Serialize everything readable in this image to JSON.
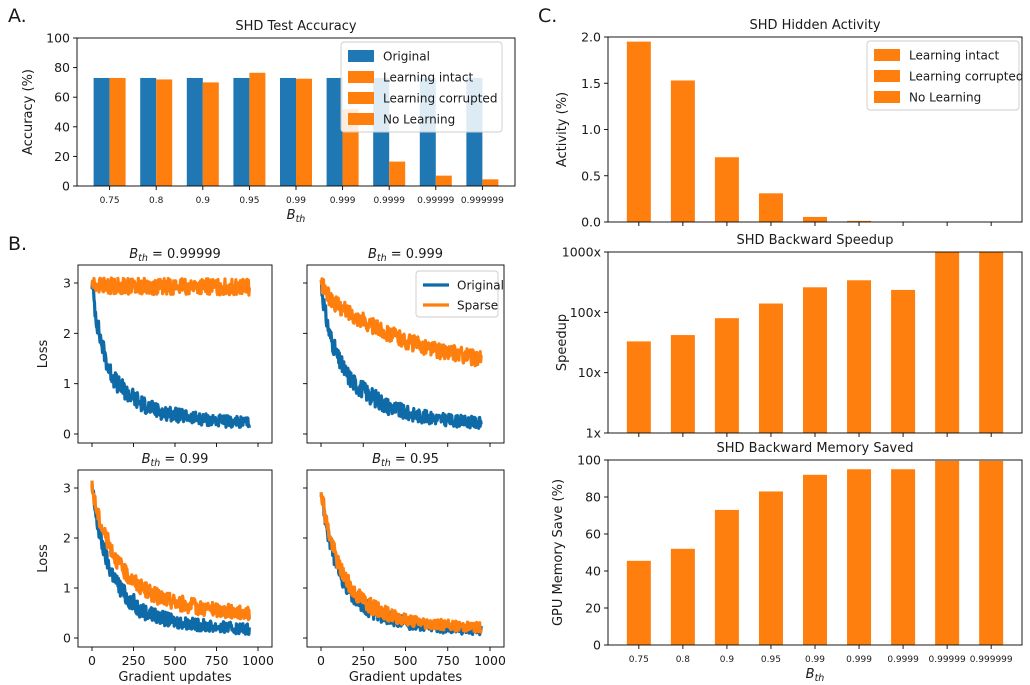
{
  "colors": {
    "original": "#1f77b4",
    "orange": "#ff7f0e",
    "blue": "#0f6aa8"
  },
  "panel_letters": {
    "a": "A.",
    "b": "B.",
    "c": "C."
  },
  "chart_data": [
    {
      "id": "accuracy",
      "type": "bar",
      "title": "SHD Test Accuracy",
      "xlabel_base": "B",
      "xlabel_sub": "th",
      "ylabel": "Accuracy (%)",
      "ylim": [
        0,
        100
      ],
      "yticks": [
        "0",
        "20",
        "40",
        "60",
        "80",
        "100"
      ],
      "categories": [
        "0.75",
        "0.8",
        "0.9",
        "0.95",
        "0.99",
        "0.999",
        "0.9999",
        "0.99999",
        "0.999999"
      ],
      "series": [
        {
          "name": "Original",
          "color": "#1f77b4",
          "values": [
            73,
            73,
            73,
            73,
            73,
            73,
            73,
            73,
            73
          ]
        },
        {
          "name": "Learning intact",
          "color": "#ff7f0e",
          "values": [
            73,
            72,
            70,
            76.5,
            72.5,
            52,
            16.5,
            7,
            4.5
          ]
        }
      ],
      "legend": [
        "Original",
        "Learning intact",
        "Learning corrupted",
        "No Learning"
      ],
      "legend_position": "top-right",
      "grid": false
    },
    {
      "id": "loss-99999",
      "type": "line",
      "title_base": "B",
      "title_sub": "th",
      "title_value": " = 0.99999",
      "ylabel": "Loss",
      "xlabel": "",
      "xlim": [
        0,
        1000
      ],
      "ylim": [
        0,
        3
      ],
      "xticks": [
        "0",
        "250",
        "500",
        "750",
        "1000"
      ],
      "yticks": [
        "0",
        "1",
        "2",
        "3"
      ],
      "series": [
        {
          "name": "",
          "color": "#0f6aa8",
          "x": [
            0,
            25,
            50,
            100,
            150,
            200,
            300,
            400,
            500,
            600,
            700,
            800,
            950
          ],
          "y": [
            3.0,
            2.3,
            1.9,
            1.3,
            1.0,
            0.85,
            0.6,
            0.45,
            0.38,
            0.32,
            0.28,
            0.25,
            0.22
          ]
        },
        {
          "name": "",
          "color": "#ff7f0e",
          "x": [
            0,
            50,
            200,
            400,
            600,
            800,
            950
          ],
          "y": [
            2.98,
            2.95,
            2.94,
            2.93,
            2.93,
            2.92,
            2.92
          ]
        }
      ],
      "grid": false
    },
    {
      "id": "loss-999",
      "type": "line",
      "title_base": "B",
      "title_sub": "th",
      "title_value": " = 0.999",
      "ylabel": "",
      "xlabel": "",
      "xlim": [
        0,
        1000
      ],
      "ylim": [
        0,
        3
      ],
      "xticks": [
        "0",
        "250",
        "500",
        "750",
        "1000"
      ],
      "yticks": [
        "0",
        "1",
        "2",
        "3"
      ],
      "series": [
        {
          "name": "Original",
          "color": "#0f6aa8",
          "x": [
            0,
            25,
            50,
            100,
            150,
            200,
            300,
            400,
            500,
            600,
            700,
            800,
            950
          ],
          "y": [
            3.0,
            2.4,
            2.0,
            1.5,
            1.2,
            1.0,
            0.75,
            0.55,
            0.42,
            0.35,
            0.3,
            0.26,
            0.22
          ]
        },
        {
          "name": "Sparse",
          "color": "#ff7f0e",
          "x": [
            0,
            25,
            50,
            100,
            200,
            300,
            400,
            500,
            600,
            700,
            800,
            950
          ],
          "y": [
            3.0,
            2.85,
            2.7,
            2.55,
            2.35,
            2.15,
            2.0,
            1.85,
            1.75,
            1.65,
            1.6,
            1.48
          ]
        }
      ],
      "legend_position": "top-right",
      "grid": false
    },
    {
      "id": "loss-99",
      "type": "line",
      "title_base": "B",
      "title_sub": "th",
      "title_value": " = 0.99",
      "ylabel": "Loss",
      "xlabel": "Gradient updates",
      "xlim": [
        0,
        1000
      ],
      "ylim": [
        0,
        3
      ],
      "xticks": [
        "0",
        "250",
        "500",
        "750",
        "1000"
      ],
      "yticks": [
        "0",
        "1",
        "2",
        "3"
      ],
      "series": [
        {
          "name": "",
          "color": "#0f6aa8",
          "x": [
            0,
            25,
            50,
            100,
            150,
            200,
            300,
            400,
            500,
            600,
            700,
            800,
            950
          ],
          "y": [
            3.0,
            2.4,
            2.0,
            1.45,
            1.1,
            0.85,
            0.55,
            0.42,
            0.33,
            0.28,
            0.24,
            0.21,
            0.18
          ]
        },
        {
          "name": "",
          "color": "#ff7f0e",
          "x": [
            0,
            25,
            50,
            100,
            150,
            200,
            300,
            400,
            500,
            600,
            700,
            800,
            950
          ],
          "y": [
            3.0,
            2.6,
            2.3,
            1.9,
            1.55,
            1.3,
            1.0,
            0.82,
            0.72,
            0.64,
            0.58,
            0.54,
            0.5
          ]
        }
      ],
      "grid": false
    },
    {
      "id": "loss-95",
      "type": "line",
      "title_base": "B",
      "title_sub": "th",
      "title_value": " = 0.95",
      "ylabel": "",
      "xlabel": "Gradient updates",
      "xlim": [
        0,
        1000
      ],
      "ylim": [
        0,
        3
      ],
      "xticks": [
        "0",
        "250",
        "500",
        "750",
        "1000"
      ],
      "yticks": [
        "0",
        "1",
        "2",
        "3"
      ],
      "series": [
        {
          "name": "",
          "color": "#0f6aa8",
          "x": [
            0,
            25,
            50,
            100,
            150,
            200,
            300,
            400,
            500,
            600,
            700,
            800,
            950
          ],
          "y": [
            3.0,
            2.4,
            1.95,
            1.4,
            1.05,
            0.82,
            0.55,
            0.4,
            0.3,
            0.25,
            0.21,
            0.18,
            0.15
          ]
        },
        {
          "name": "",
          "color": "#ff7f0e",
          "x": [
            0,
            25,
            50,
            100,
            150,
            200,
            300,
            400,
            500,
            600,
            700,
            800,
            950
          ],
          "y": [
            3.0,
            2.45,
            2.05,
            1.5,
            1.15,
            0.9,
            0.62,
            0.47,
            0.37,
            0.31,
            0.27,
            0.24,
            0.21
          ]
        }
      ],
      "grid": false
    },
    {
      "id": "activity",
      "type": "bar",
      "title": "SHD Hidden Activity",
      "ylabel": "Activity (%)",
      "ylim": [
        0,
        2.0
      ],
      "yticks": [
        "0.0",
        "0.5",
        "1.0",
        "1.5",
        "2.0"
      ],
      "categories": [
        "0.75",
        "0.8",
        "0.9",
        "0.95",
        "0.99",
        "0.999",
        "0.9999",
        "0.99999",
        "0.999999"
      ],
      "series": [
        {
          "name": "Learning intact",
          "color": "#ff7f0e",
          "values": [
            1.95,
            1.53,
            0.7,
            0.31,
            0.055,
            0.012,
            0.004,
            0.002,
            0.001
          ]
        }
      ],
      "legend": [
        "Learning intact",
        "Learning corrupted",
        "No Learning"
      ],
      "legend_position": "top-right",
      "grid": false
    },
    {
      "id": "speedup",
      "type": "bar",
      "title": "SHD Backward Speedup",
      "ylabel": "Speedup",
      "yscale": "log",
      "ylim": [
        1,
        1000
      ],
      "yticks": [
        "1x",
        "10x",
        "100x",
        "1000x"
      ],
      "categories": [
        "0.75",
        "0.8",
        "0.9",
        "0.95",
        "0.99",
        "0.999",
        "0.9999",
        "0.99999",
        "0.999999"
      ],
      "series": [
        {
          "name": "",
          "color": "#ff7f0e",
          "values": [
            33,
            42,
            80,
            140,
            260,
            340,
            235,
            1000,
            1000
          ]
        }
      ],
      "grid": false
    },
    {
      "id": "memory",
      "type": "bar",
      "title": "SHD Backward Memory Saved",
      "xlabel_base": "B",
      "xlabel_sub": "th",
      "ylabel": "GPU Memory Save (%)",
      "ylim": [
        0,
        100
      ],
      "yticks": [
        "0",
        "20",
        "40",
        "60",
        "80",
        "100"
      ],
      "categories": [
        "0.75",
        "0.8",
        "0.9",
        "0.95",
        "0.99",
        "0.999",
        "0.9999",
        "0.99999",
        "0.999999"
      ],
      "series": [
        {
          "name": "",
          "color": "#ff7f0e",
          "values": [
            45.5,
            52,
            73,
            83,
            92,
            95,
            95,
            99.5,
            99.5
          ]
        }
      ],
      "grid": false
    }
  ]
}
